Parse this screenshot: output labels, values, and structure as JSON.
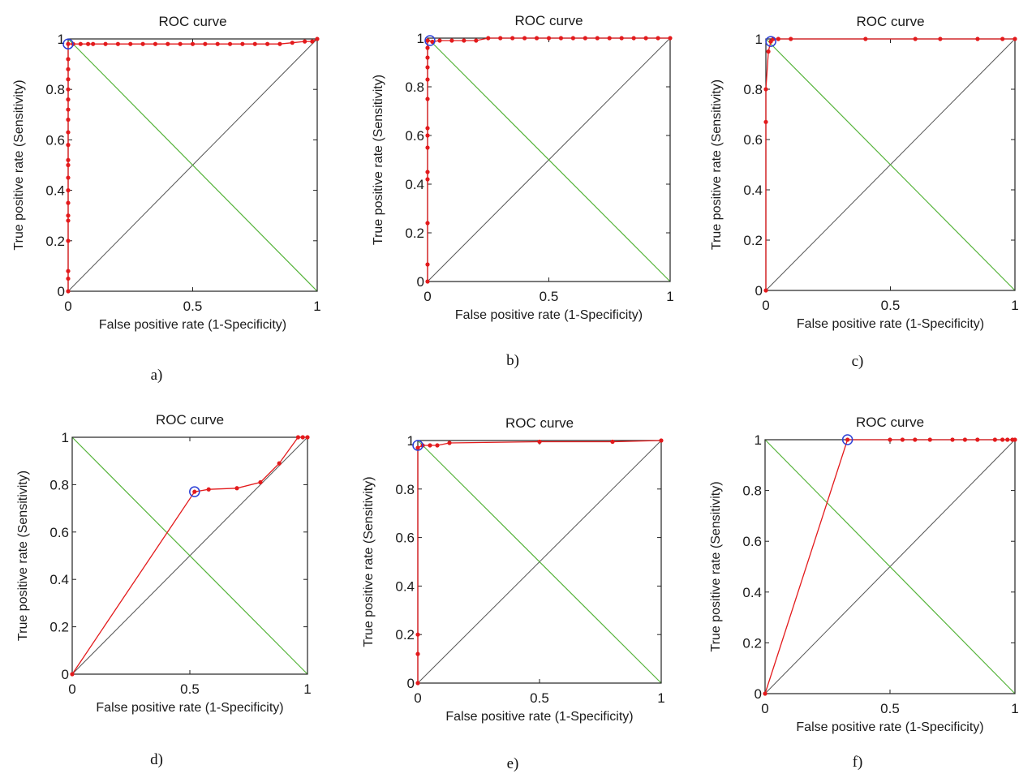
{
  "chart_data": [
    {
      "panel_label": "a)",
      "type": "line",
      "title": "ROC curve",
      "xlabel": "False positive rate (1-Specificity)",
      "ylabel": "True positive rate (Sensitivity)",
      "xlim": [
        0,
        1
      ],
      "ylim": [
        0,
        1
      ],
      "x_ticks": [
        "0",
        "0.5",
        "1"
      ],
      "y_ticks": [
        "0",
        "0.2",
        "0.4",
        "0.6",
        "0.8",
        "1"
      ],
      "series": [
        {
          "color": "#e31a1c",
          "x": [
            0,
            0,
            0,
            0,
            0,
            0,
            0,
            0,
            0,
            0,
            0,
            0,
            0,
            0,
            0,
            0,
            0,
            0,
            0,
            0,
            0,
            0.02,
            0.05,
            0.08,
            0.1,
            0.15,
            0.2,
            0.25,
            0.3,
            0.35,
            0.4,
            0.45,
            0.5,
            0.55,
            0.6,
            0.65,
            0.7,
            0.75,
            0.8,
            0.85,
            0.9,
            0.95,
            0.98,
            1
          ],
          "y": [
            0,
            0.05,
            0.08,
            0.2,
            0.28,
            0.3,
            0.35,
            0.4,
            0.45,
            0.5,
            0.52,
            0.58,
            0.63,
            0.68,
            0.72,
            0.76,
            0.8,
            0.84,
            0.88,
            0.92,
            0.98,
            0.98,
            0.98,
            0.98,
            0.98,
            0.98,
            0.98,
            0.98,
            0.98,
            0.98,
            0.98,
            0.98,
            0.98,
            0.98,
            0.98,
            0.98,
            0.98,
            0.98,
            0.98,
            0.98,
            0.985,
            0.99,
            0.99,
            1
          ]
        }
      ],
      "optimal_point": [
        0,
        0.98
      ],
      "diagonal_color": "#555555",
      "anti_diagonal_color": "#55b33a"
    },
    {
      "panel_label": "b)",
      "type": "line",
      "title": "ROC curve",
      "xlabel": "False positive rate (1-Specificity)",
      "ylabel": "True positive rate (Sensitivity)",
      "xlim": [
        0,
        1
      ],
      "ylim": [
        0,
        1
      ],
      "x_ticks": [
        "0",
        "0.5",
        "1"
      ],
      "y_ticks": [
        "0",
        "0.2",
        "0.4",
        "0.6",
        "0.8",
        "1"
      ],
      "series": [
        {
          "color": "#e31a1c",
          "x": [
            0,
            0,
            0,
            0,
            0,
            0,
            0,
            0,
            0,
            0,
            0,
            0,
            0,
            0,
            0.02,
            0.05,
            0.1,
            0.15,
            0.2,
            0.25,
            0.3,
            0.35,
            0.4,
            0.45,
            0.5,
            0.55,
            0.6,
            0.65,
            0.7,
            0.75,
            0.8,
            0.85,
            0.9,
            0.95,
            1
          ],
          "y": [
            0,
            0.07,
            0.24,
            0.42,
            0.45,
            0.55,
            0.6,
            0.63,
            0.75,
            0.83,
            0.88,
            0.92,
            0.96,
            0.99,
            0.985,
            0.99,
            0.99,
            0.99,
            0.99,
            1,
            1,
            1,
            1,
            1,
            1,
            1,
            1,
            1,
            1,
            1,
            1,
            1,
            1,
            1,
            1
          ]
        }
      ],
      "optimal_point": [
        0.01,
        0.99
      ],
      "diagonal_color": "#555555",
      "anti_diagonal_color": "#55b33a"
    },
    {
      "panel_label": "c)",
      "type": "line",
      "title": "ROC curve",
      "xlabel": "False positive rate (1-Specificity)",
      "ylabel": "True positive rate (Sensitivity)",
      "xlim": [
        0,
        1
      ],
      "ylim": [
        0,
        1
      ],
      "x_ticks": [
        "0",
        "0.5",
        "1"
      ],
      "y_ticks": [
        "0",
        "0.2",
        "0.4",
        "0.6",
        "0.8",
        "1"
      ],
      "series": [
        {
          "color": "#e31a1c",
          "x": [
            0,
            0,
            0,
            0.01,
            0.02,
            0.03,
            0.05,
            0.1,
            0.4,
            0.6,
            0.7,
            0.85,
            0.95,
            1
          ],
          "y": [
            0,
            0.67,
            0.8,
            0.95,
            0.99,
            1,
            1,
            1,
            1,
            1,
            1,
            1,
            1,
            1
          ]
        }
      ],
      "optimal_point": [
        0.02,
        0.99
      ],
      "diagonal_color": "#555555",
      "anti_diagonal_color": "#55b33a"
    },
    {
      "panel_label": "d)",
      "type": "line",
      "title": "ROC curve",
      "xlabel": "False positive rate (1-Specificity)",
      "ylabel": "True positive rate (Sensitivity)",
      "xlim": [
        0,
        1
      ],
      "ylim": [
        0,
        1
      ],
      "x_ticks": [
        "0",
        "0.5",
        "1"
      ],
      "y_ticks": [
        "0",
        "0.2",
        "0.4",
        "0.6",
        "0.8",
        "1"
      ],
      "series": [
        {
          "color": "#e31a1c",
          "x": [
            0,
            0.52,
            0.58,
            0.7,
            0.8,
            0.88,
            0.96,
            0.98,
            1
          ],
          "y": [
            0,
            0.77,
            0.78,
            0.785,
            0.81,
            0.89,
            1,
            1,
            1
          ]
        }
      ],
      "optimal_point": [
        0.52,
        0.77
      ],
      "diagonal_color": "#555555",
      "anti_diagonal_color": "#55b33a"
    },
    {
      "panel_label": "e)",
      "type": "line",
      "title": "ROC curve",
      "xlabel": "False positive rate (1-Specificity)",
      "ylabel": "True positive rate (Sensitivity)",
      "xlim": [
        0,
        1
      ],
      "ylim": [
        0,
        1
      ],
      "x_ticks": [
        "0",
        "0.5",
        "1"
      ],
      "y_ticks": [
        "0",
        "0.2",
        "0.4",
        "0.6",
        "0.8",
        "1"
      ],
      "series": [
        {
          "color": "#e31a1c",
          "x": [
            0,
            0,
            0,
            0,
            0.02,
            0.05,
            0.08,
            0.13,
            0.5,
            0.8,
            1
          ],
          "y": [
            0,
            0.12,
            0.2,
            0.97,
            0.98,
            0.98,
            0.98,
            0.99,
            0.995,
            0.995,
            1
          ]
        }
      ],
      "optimal_point": [
        0,
        0.98
      ],
      "diagonal_color": "#555555",
      "anti_diagonal_color": "#55b33a"
    },
    {
      "panel_label": "f)",
      "type": "line",
      "title": "ROC curve",
      "xlabel": "False positive rate (1-Specificity)",
      "ylabel": "True positive rate (Sensitivity)",
      "xlim": [
        0,
        1
      ],
      "ylim": [
        0,
        1
      ],
      "x_ticks": [
        "0",
        "0.5",
        "1"
      ],
      "y_ticks": [
        "0",
        "0.2",
        "0.4",
        "0.6",
        "0.8",
        "1"
      ],
      "series": [
        {
          "color": "#e31a1c",
          "x": [
            0,
            0.33,
            0.5,
            0.55,
            0.6,
            0.66,
            0.75,
            0.8,
            0.85,
            0.92,
            0.95,
            0.97,
            0.99,
            1
          ],
          "y": [
            0,
            1,
            1,
            1,
            1,
            1,
            1,
            1,
            1,
            1,
            1,
            1,
            1,
            1
          ]
        }
      ],
      "optimal_point": [
        0.33,
        1
      ],
      "diagonal_color": "#555555",
      "anti_diagonal_color": "#55b33a"
    }
  ]
}
